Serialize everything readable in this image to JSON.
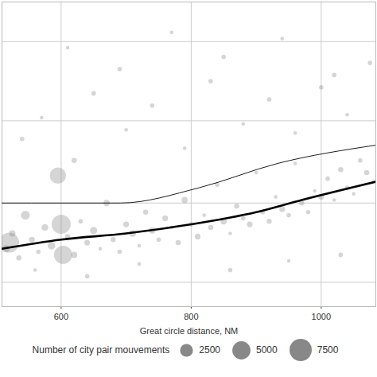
{
  "chart_data": {
    "type": "scatter",
    "x_label": "Great circle distance, NM",
    "xlim": [
      509,
      1084
    ],
    "xticks": [
      600,
      800,
      1000
    ],
    "ylim": [
      0,
      100
    ],
    "yticks": [
      8,
      34,
      61,
      87
    ],
    "tick_labels": "x",
    "grid": true,
    "color": "#888888",
    "marker": "circle",
    "x": [
      520,
      600,
      603,
      595,
      515,
      525,
      535,
      545,
      555,
      565,
      575,
      585,
      610,
      620,
      630,
      640,
      650,
      660,
      670,
      680,
      690,
      700,
      710,
      720,
      730,
      740,
      750,
      760,
      770,
      780,
      790,
      800,
      810,
      820,
      830,
      840,
      850,
      860,
      870,
      880,
      890,
      900,
      910,
      920,
      930,
      940,
      950,
      960,
      970,
      980,
      990,
      1000,
      1010,
      1020,
      1030,
      1040,
      1050,
      1060,
      1070,
      1080,
      540,
      570,
      620,
      650,
      700,
      740,
      790,
      830,
      880,
      920,
      960,
      1000,
      1040,
      1075,
      560,
      640,
      720,
      860,
      950,
      1030,
      610,
      690,
      770,
      850,
      940,
      1020
    ],
    "y": [
      21,
      27,
      17,
      43,
      19,
      24,
      16,
      30,
      22,
      18,
      26,
      20,
      23,
      17,
      28,
      21,
      25,
      19,
      34,
      22,
      18,
      27,
      24,
      20,
      31,
      25,
      22,
      29,
      26,
      21,
      35,
      27,
      23,
      30,
      26,
      40,
      28,
      24,
      33,
      29,
      27,
      44,
      31,
      28,
      36,
      32,
      30,
      47,
      34,
      31,
      38,
      36,
      42,
      35,
      45,
      39,
      37,
      48,
      44,
      41,
      55,
      62,
      48,
      70,
      58,
      66,
      52,
      74,
      60,
      68,
      57,
      72,
      63,
      80,
      12,
      10,
      14,
      12,
      15,
      17,
      85,
      78,
      90,
      82,
      88,
      76
    ],
    "sizes": [
      6000,
      5500,
      5000,
      4000,
      800,
      600,
      400,
      1200,
      500,
      300,
      700,
      900,
      400,
      600,
      300,
      500,
      800,
      200,
      600,
      400,
      300,
      500,
      700,
      200,
      400,
      600,
      300,
      500,
      200,
      400,
      600,
      300,
      500,
      200,
      400,
      300,
      600,
      200,
      400,
      300,
      500,
      200,
      300,
      400,
      200,
      500,
      300,
      200,
      400,
      300,
      200,
      500,
      300,
      200,
      400,
      300,
      200,
      300,
      400,
      200,
      300,
      200,
      400,
      300,
      200,
      300,
      200,
      300,
      200,
      300,
      200,
      300,
      200,
      300,
      200,
      300,
      200,
      300,
      200,
      300,
      200,
      300,
      200,
      300,
      200,
      300
    ],
    "lines": [
      {
        "x": [
          509,
          600,
          700,
          800,
          900,
          970,
          1084
        ],
        "y": [
          19,
          22,
          24,
          27,
          31,
          35,
          41
        ],
        "color": "#000000",
        "line_style": "thick"
      },
      {
        "x": [
          509,
          600,
          691,
          812,
          933,
          1084
        ],
        "y": [
          34,
          34,
          34,
          39,
          47,
          53
        ],
        "color": "#000000",
        "line_style": "thin"
      }
    ],
    "legend": "bottom",
    "legend_title": "Number of city pair mouvements",
    "legend_values": [
      2500,
      5000,
      7500
    ]
  }
}
